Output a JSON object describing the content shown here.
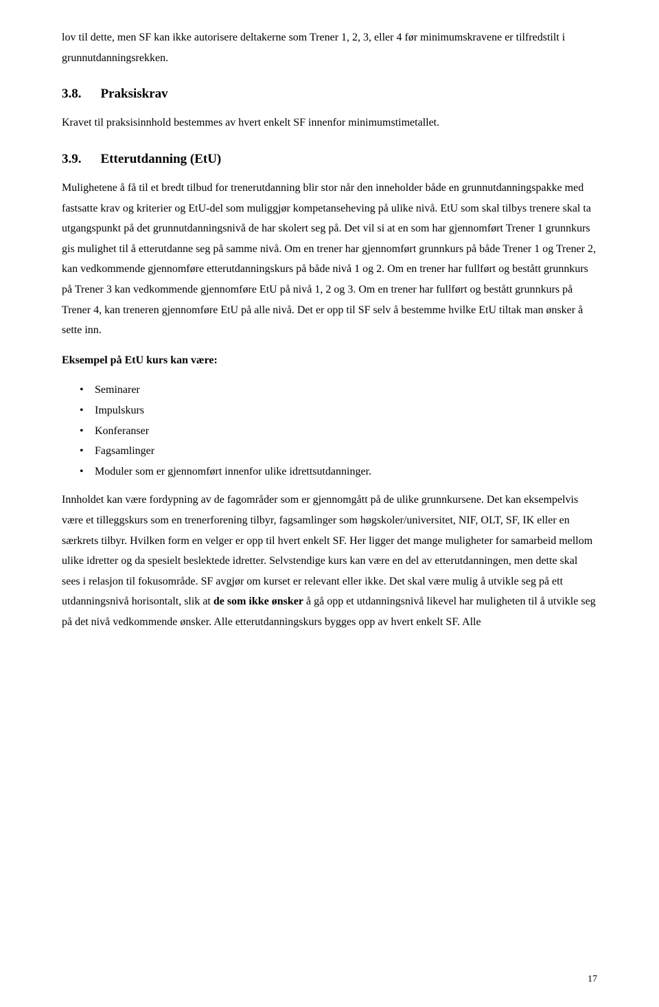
{
  "para1": "lov til dette, men SF kan ikke autorisere deltakerne som Trener 1, 2, 3, eller 4 før minimumskravene er tilfredstilt i grunnutdanningsrekken.",
  "heading38_num": "3.8.",
  "heading38_text": "Praksiskrav",
  "para2": "Kravet til praksisinnhold bestemmes av hvert enkelt SF innenfor minimumstimetallet.",
  "heading39_num": "3.9.",
  "heading39_text": "Etterutdanning  (EtU)",
  "para3": "Mulighetene å få til et bredt tilbud for trenerutdanning blir stor når den inneholder både en grunnutdanningspakke med fastsatte krav og kriterier og  EtU-del som muliggjør kompetanseheving på ulike nivå. EtU som skal tilbys trenere skal ta utgangspunkt på det grunnutdanningsnivå de har skolert seg på. Det vil si at en som har gjennomført Trener 1 grunnkurs gis mulighet til å etterutdanne seg på samme nivå. Om en trener har gjennomført grunnkurs på både Trener 1 og Trener 2, kan vedkommende gjennomføre etterutdanningskurs på både nivå 1 og 2. Om en trener har fullført og bestått grunnkurs på Trener 3 kan vedkommende gjennomføre EtU på nivå 1, 2 og 3. Om en trener har fullført og bestått grunnkurs på Trener 4, kan treneren gjennomføre EtU på alle nivå. Det er opp til SF selv å bestemme hvilke EtU tiltak man ønsker å sette inn.",
  "para4_bold": "Eksempel på EtU kurs kan være:",
  "bullets": {
    "b1": "Seminarer",
    "b2": "Impulskurs",
    "b3": "Konferanser",
    "b4": "Fagsamlinger",
    "b5": "Moduler som er gjennomført innenfor ulike idrettsutdanninger."
  },
  "para5_pre": "Innholdet kan være fordypning av de fagområder som er gjennomgått på de ulike grunnkursene. Det kan eksempelvis være et tilleggskurs som en trenerforening tilbyr, fagsamlinger som høgskoler/universitet, NIF, OLT, SF, IK eller en særkrets tilbyr. Hvilken form en velger er opp til hvert enkelt SF. Her ligger det mange muligheter for samarbeid mellom ulike idretter og da spesielt beslektede idretter. Selvstendige kurs kan være en del av etterutdanningen, men dette skal sees i relasjon til fokusområde. SF avgjør om kurset er relevant eller ikke. Det skal være mulig å utvikle seg på ett utdanningsnivå horisontalt, slik at ",
  "para5_bold": "de som ikke ønsker",
  "para5_post": " å gå opp et utdanningsnivå likevel har muligheten til å utvikle seg på det nivå vedkommende ønsker. Alle etterutdanningskurs bygges opp av hvert enkelt SF. Alle",
  "page_number": "17"
}
